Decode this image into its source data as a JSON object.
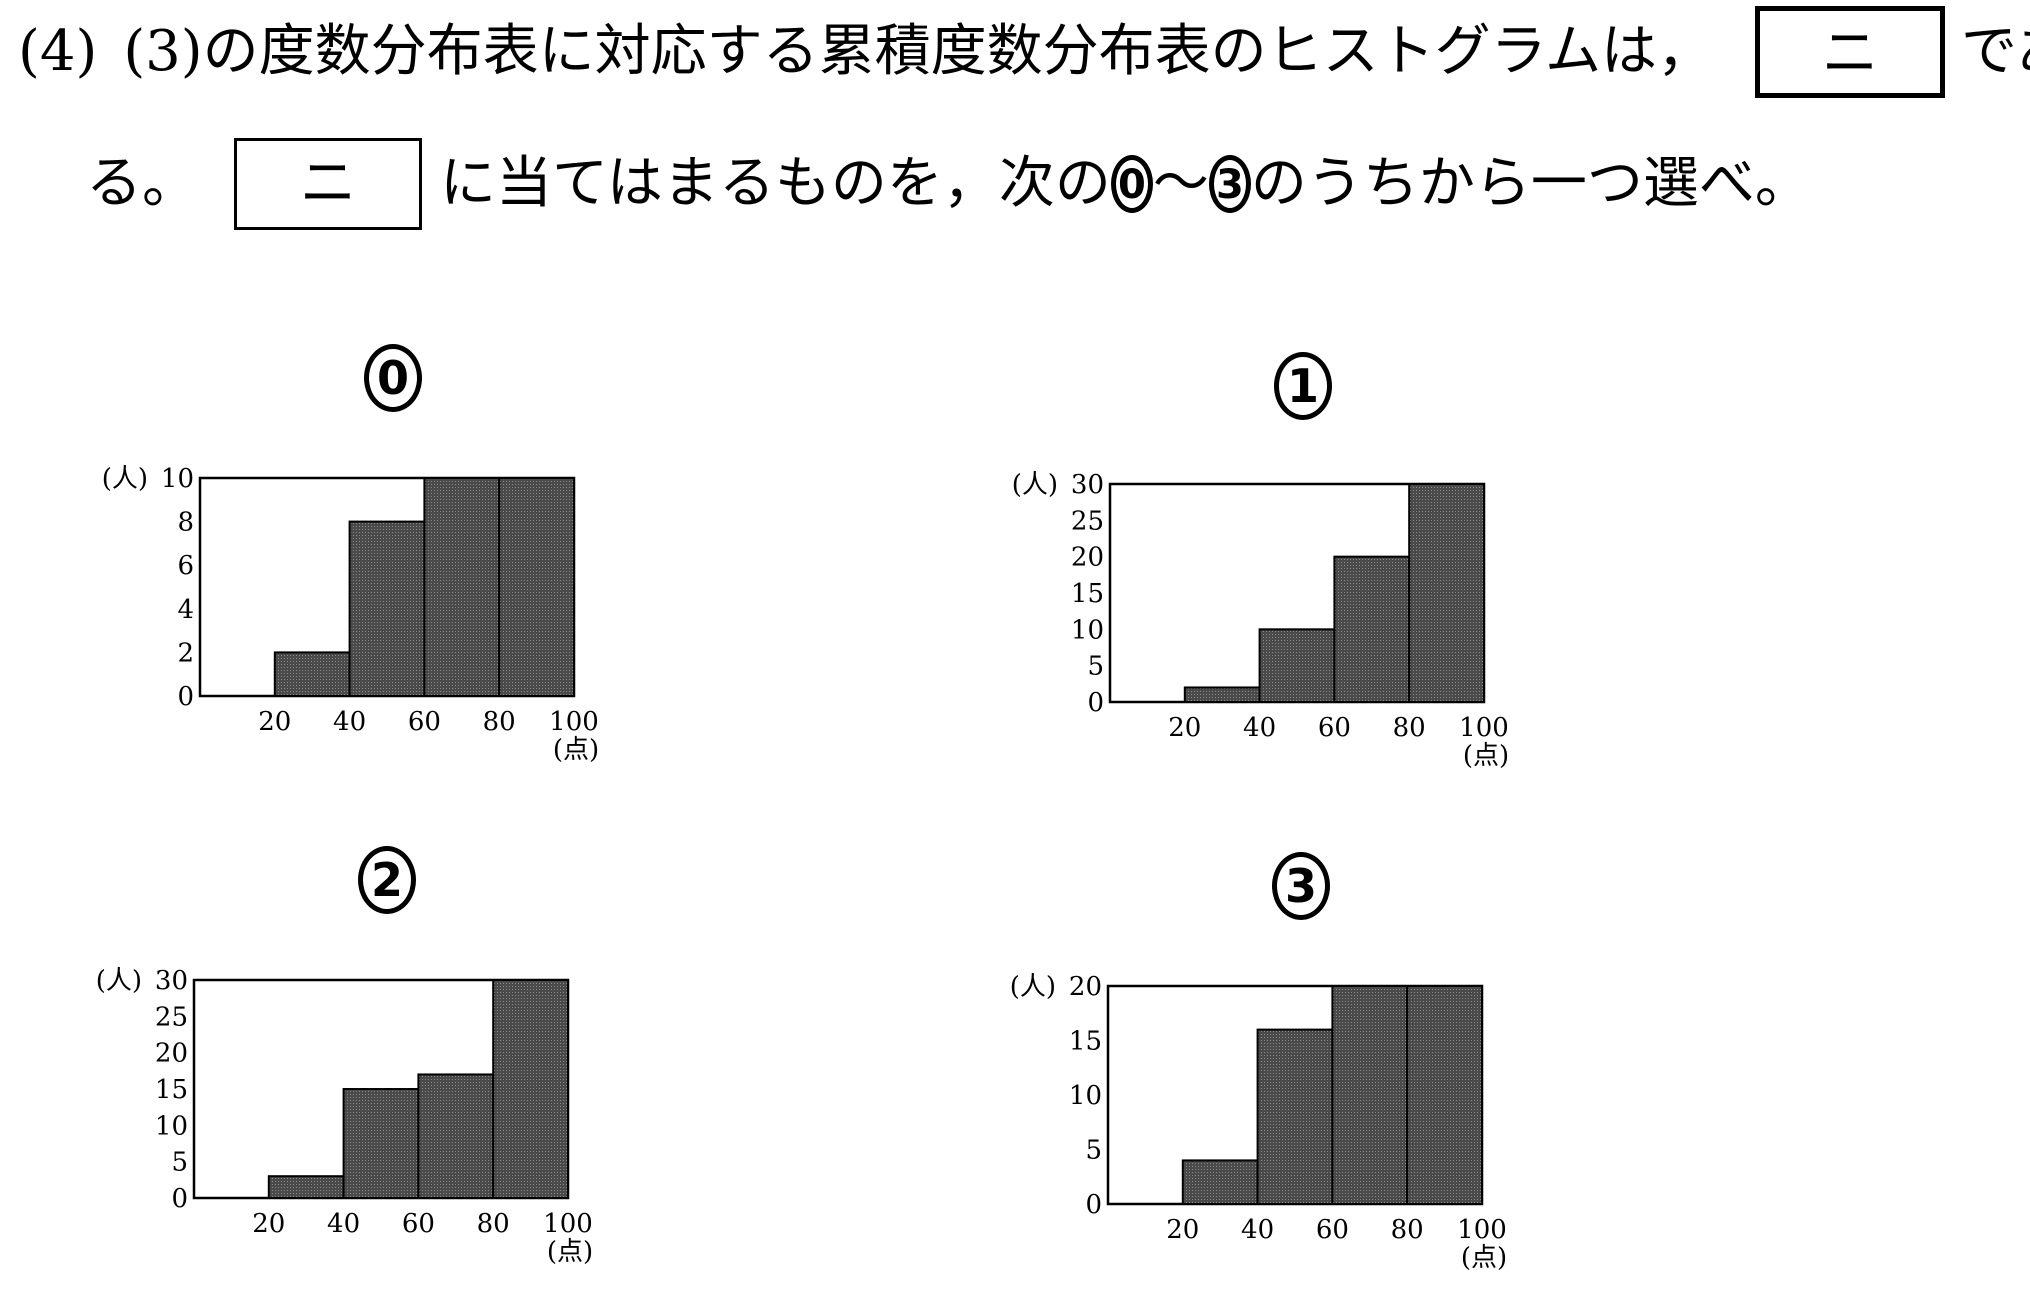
{
  "question": {
    "number": "(4)",
    "text_part1": "(3)の度数分布表に対応する累積度数分布表のヒストグラムは，",
    "blank_label": "ニ",
    "text_part2": "であ",
    "text_part3": "る。",
    "text_part4": "に当てはまるものを，次の",
    "opt_first": "0",
    "tilde": "～",
    "opt_last": "3",
    "text_part5": "のうちから一つ選べ。"
  },
  "colors": {
    "bar_fill": "#4a4a4a",
    "ink": "#000000",
    "paper": "#ffffff"
  },
  "chart_data": [
    {
      "type": "bar",
      "option": "0",
      "categories": [
        "0-20",
        "20-40",
        "40-60",
        "60-80",
        "80-100"
      ],
      "values": [
        0,
        2,
        8,
        10,
        10
      ],
      "x_ticks": [
        "20",
        "40",
        "60",
        "80",
        "100"
      ],
      "y_ticks": [
        "0",
        "2",
        "4",
        "6",
        "8",
        "10"
      ],
      "ylim": [
        0,
        10
      ],
      "ylabel": "(人)",
      "xlabel": "(点)"
    },
    {
      "type": "bar",
      "option": "1",
      "categories": [
        "0-20",
        "20-40",
        "40-60",
        "60-80",
        "80-100"
      ],
      "values": [
        0,
        2,
        10,
        20,
        30
      ],
      "x_ticks": [
        "20",
        "40",
        "60",
        "80",
        "100"
      ],
      "y_ticks": [
        "0",
        "5",
        "10",
        "15",
        "20",
        "25",
        "30"
      ],
      "ylim": [
        0,
        30
      ],
      "ylabel": "(人)",
      "xlabel": "(点)"
    },
    {
      "type": "bar",
      "option": "2",
      "categories": [
        "0-20",
        "20-40",
        "40-60",
        "60-80",
        "80-100"
      ],
      "values": [
        0,
        3,
        15,
        17,
        30
      ],
      "x_ticks": [
        "20",
        "40",
        "60",
        "80",
        "100"
      ],
      "y_ticks": [
        "0",
        "5",
        "10",
        "15",
        "20",
        "25",
        "30"
      ],
      "ylim": [
        0,
        30
      ],
      "ylabel": "(人)",
      "xlabel": "(点)"
    },
    {
      "type": "bar",
      "option": "3",
      "categories": [
        "0-20",
        "20-40",
        "40-60",
        "60-80",
        "80-100"
      ],
      "values": [
        0,
        4,
        16,
        20,
        20
      ],
      "x_ticks": [
        "20",
        "40",
        "60",
        "80",
        "100"
      ],
      "y_ticks": [
        "0",
        "5",
        "10",
        "15",
        "20"
      ],
      "ylim": [
        0,
        20
      ],
      "ylabel": "(人)",
      "xlabel": "(点)"
    }
  ]
}
